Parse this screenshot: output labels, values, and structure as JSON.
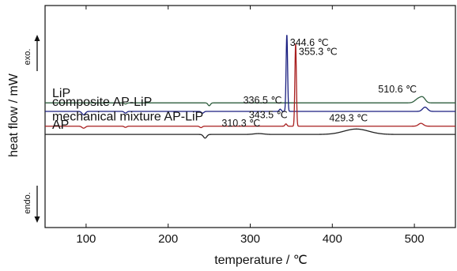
{
  "chart_data": {
    "type": "line",
    "xlabel": "temperature / ℃",
    "ylabel": "heat flow / mW",
    "xlim": [
      50,
      550
    ],
    "x_ticks": [
      "100",
      "200",
      "300",
      "400",
      "500"
    ],
    "x_tick_values": [
      100,
      200,
      300,
      400,
      500
    ],
    "y_ticks_shown": false,
    "direction_labels": {
      "up": "exo.",
      "down": "endo."
    },
    "grid": false,
    "series": [
      {
        "name": "LiP",
        "color": "#2e5e3e",
        "baseline": 0.5,
        "peaks": [
          {
            "x": 148,
            "height": -0.4,
            "width": 1.5
          },
          {
            "x": 250,
            "height": -1.0,
            "width": 1.5
          },
          {
            "x": 505,
            "height": 1.5,
            "width": 4
          },
          {
            "x": 510.6,
            "height": 1.5,
            "width": 3
          }
        ]
      },
      {
        "name": "composite AP-LiP",
        "color": "#1a1f80",
        "baseline": -2.5,
        "peaks": [
          {
            "x": 97,
            "height": -1.2,
            "width": 2
          },
          {
            "x": 148,
            "height": -0.6,
            "width": 1.5
          },
          {
            "x": 242,
            "height": -0.6,
            "width": 1.5
          },
          {
            "x": 336.5,
            "height": 0.8,
            "width": 1.2
          },
          {
            "x": 344.6,
            "height": 27,
            "width": 0.9
          },
          {
            "x": 513,
            "height": 1.5,
            "width": 3
          }
        ]
      },
      {
        "name": "mechanical mixture AP-LiP",
        "color": "#a81e1e",
        "baseline": -7.7,
        "peaks": [
          {
            "x": 97,
            "height": -0.7,
            "width": 2
          },
          {
            "x": 148,
            "height": -0.4,
            "width": 1.5
          },
          {
            "x": 240,
            "height": -0.5,
            "width": 1.5
          },
          {
            "x": 343.5,
            "height": 0.8,
            "width": 1.2
          },
          {
            "x": 355.3,
            "height": 29,
            "width": 0.9
          },
          {
            "x": 508,
            "height": 1.0,
            "width": 3
          }
        ]
      },
      {
        "name": "AP",
        "color": "#222222",
        "baseline": -10.6,
        "peaks": [
          {
            "x": 245,
            "height": -1.3,
            "width": 2
          },
          {
            "x": 310.3,
            "height": 0.3,
            "width": 6
          },
          {
            "x": 429.3,
            "height": 1.9,
            "width": 15
          }
        ]
      }
    ],
    "annotations": [
      {
        "text": "510.6 ℃",
        "x": 510.6,
        "series": "LiP"
      },
      {
        "text": "344.6 ℃",
        "x": 344.6,
        "series": "composite AP-LiP"
      },
      {
        "text": "336.5 ℃",
        "x": 336.5,
        "series": "composite AP-LiP"
      },
      {
        "text": "355.3 ℃",
        "x": 355.3,
        "series": "mechanical mixture AP-LiP"
      },
      {
        "text": "343.5 ℃",
        "x": 343.5,
        "series": "mechanical mixture AP-LiP"
      },
      {
        "text": "310.3 ℃",
        "x": 310.3,
        "series": "AP"
      },
      {
        "text": "429.3 ℃",
        "x": 429.3,
        "series": "AP"
      }
    ]
  }
}
